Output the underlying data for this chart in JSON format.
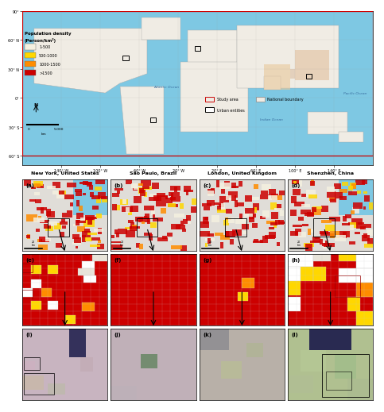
{
  "title_labels": [
    "New York, United States",
    "São Paulo, Brazil",
    "London, United Kingdom",
    "Shenzhen, China"
  ],
  "panel_labels_row1": [
    "(a)",
    "(b)",
    "(c)",
    "(d)"
  ],
  "panel_labels_row2": [
    "(e)",
    "(f)",
    "(g)",
    "(h)"
  ],
  "panel_labels_row3": [
    "(i)",
    "(j)",
    "(k)",
    "(l)"
  ],
  "world_map_bg": "#7ec8e3",
  "land_color": "#f0ece4",
  "border_color": "#aaaaaa",
  "study_box_color": "#cc0000",
  "legend_items": [
    "1-500",
    "500-1000",
    "1000-1500",
    ">1500"
  ],
  "legend_colors": [
    "#f5f0e0",
    "#ffd700",
    "#ff8c00",
    "#cc0000"
  ],
  "axis_lon_labels": [
    "140° W",
    "100° W",
    "60° W",
    "20° W",
    "20° E",
    "60° E",
    "100° E",
    "140° E"
  ],
  "axis_lat_labels": [
    "90°",
    "60° N",
    "30° N",
    "0°",
    "30° S",
    "60° S"
  ],
  "map_bg": "#7ec8e3",
  "panel_bg_red": "#cc0000",
  "panel_bg_light": "#f0ece4",
  "arrow_color": "#000000",
  "figure_bg": "#ffffff",
  "row2_colors": {
    "red": "#cc0000",
    "yellow": "#ffd700",
    "orange": "#ff8c00",
    "white": "#ffffff",
    "light_gray": "#e8e4da"
  },
  "row3_colors": {
    "ny_bg": "#c8b4c0",
    "sp_bg": "#c0b0b8",
    "lo_bg": "#b8b0a8",
    "sz_bg": "#b0c090",
    "dark_blue": "#1a1a4a",
    "dark_green": "#2a4a2a"
  },
  "legend_extra": [
    "Study area",
    "National boundary",
    "Urban entities"
  ]
}
